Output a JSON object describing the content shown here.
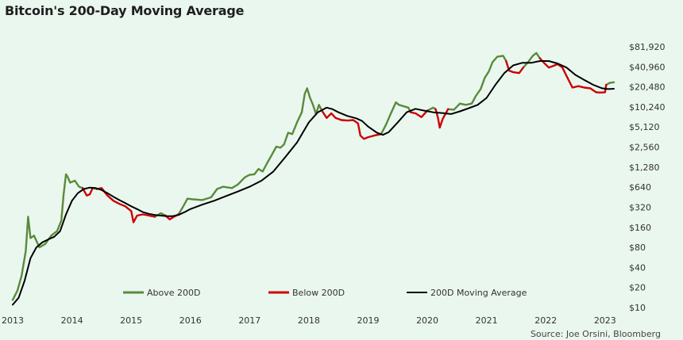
{
  "title": "Bitcoin's 200-Day Moving Average",
  "source": "Source: Joe Orsini, Bloomberg",
  "colors": {
    "above": "#5a8a3a",
    "below": "#cc0000",
    "ma": "#000000",
    "background": "#eaf7ef"
  },
  "chart_data": {
    "type": "line",
    "title": "Bitcoin's 200-Day Moving Average",
    "y_scale": "log2",
    "ylim": [
      10,
      100000
    ],
    "y_ticks": [
      10,
      20,
      40,
      80,
      160,
      320,
      640,
      1280,
      2560,
      5120,
      10240,
      20480,
      40960,
      81920
    ],
    "y_tick_labels": [
      "$10",
      "$20",
      "$40",
      "$80",
      "$160",
      "$320",
      "$640",
      "$1,280",
      "$2,560",
      "$5,120",
      "$10,240",
      "$20,480",
      "$40,960",
      "$81,920"
    ],
    "x_ticks": [
      2013,
      2014,
      2015,
      2016,
      2017,
      2018,
      2019,
      2020,
      2021,
      2022,
      2023
    ],
    "xlim": [
      2013.0,
      2023.15
    ],
    "legend_position": "bottom-center",
    "series": [
      {
        "name": "Above 200D",
        "color": "#5a8a3a",
        "segments": [
          [
            [
              2013.0,
              13
            ],
            [
              2013.08,
              18
            ],
            [
              2013.15,
              30
            ],
            [
              2013.22,
              70
            ],
            [
              2013.26,
              230
            ],
            [
              2013.3,
              110
            ],
            [
              2013.36,
              120
            ],
            [
              2013.45,
              80
            ],
            [
              2013.55,
              90
            ],
            [
              2013.65,
              120
            ],
            [
              2013.75,
              140
            ],
            [
              2013.82,
              200
            ],
            [
              2013.86,
              500
            ],
            [
              2013.9,
              1000
            ],
            [
              2013.93,
              900
            ],
            [
              2013.97,
              750
            ],
            [
              2014.05,
              800
            ],
            [
              2014.12,
              650
            ],
            [
              2014.18,
              620
            ]
          ],
          [
            [
              2014.35,
              620
            ],
            [
              2014.42,
              600
            ]
          ],
          [
            [
              2015.4,
              230
            ],
            [
              2015.5,
              260
            ],
            [
              2015.58,
              240
            ]
          ],
          [
            [
              2015.8,
              250
            ],
            [
              2015.88,
              330
            ],
            [
              2015.95,
              430
            ],
            [
              2016.05,
              420
            ],
            [
              2016.2,
              410
            ],
            [
              2016.35,
              450
            ],
            [
              2016.45,
              600
            ],
            [
              2016.55,
              650
            ],
            [
              2016.7,
              620
            ],
            [
              2016.8,
              700
            ],
            [
              2016.92,
              900
            ],
            [
              2017.0,
              980
            ],
            [
              2017.08,
              1000
            ],
            [
              2017.15,
              1200
            ],
            [
              2017.22,
              1100
            ],
            [
              2017.3,
              1500
            ],
            [
              2017.38,
              2000
            ],
            [
              2017.45,
              2600
            ],
            [
              2017.52,
              2500
            ],
            [
              2017.58,
              2800
            ],
            [
              2017.65,
              4200
            ],
            [
              2017.72,
              4000
            ],
            [
              2017.8,
              6000
            ],
            [
              2017.88,
              8500
            ],
            [
              2017.93,
              16000
            ],
            [
              2017.97,
              19500
            ],
            [
              2018.02,
              14000
            ],
            [
              2018.07,
              11000
            ],
            [
              2018.12,
              8000
            ],
            [
              2018.17,
              11000
            ],
            [
              2018.22,
              9000
            ]
          ],
          [
            [
              2019.22,
              4000
            ],
            [
              2019.3,
              5500
            ],
            [
              2019.38,
              8000
            ],
            [
              2019.47,
              12000
            ],
            [
              2019.52,
              11000
            ],
            [
              2019.6,
              10500
            ],
            [
              2019.68,
              10000
            ],
            [
              2019.72,
              8500
            ]
          ],
          [
            [
              2020.0,
              9000
            ],
            [
              2020.1,
              10000
            ],
            [
              2020.14,
              9500
            ]
          ],
          [
            [
              2020.35,
              9500
            ],
            [
              2020.45,
              9300
            ],
            [
              2020.55,
              11500
            ],
            [
              2020.65,
              11000
            ],
            [
              2020.75,
              11500
            ],
            [
              2020.82,
              15000
            ],
            [
              2020.9,
              19000
            ],
            [
              2020.97,
              28000
            ],
            [
              2021.04,
              35000
            ],
            [
              2021.1,
              48000
            ],
            [
              2021.18,
              58000
            ],
            [
              2021.28,
              60000
            ],
            [
              2021.33,
              50000
            ]
          ],
          [
            [
              2021.62,
              40000
            ],
            [
              2021.7,
              48000
            ],
            [
              2021.78,
              60000
            ],
            [
              2021.84,
              66000
            ],
            [
              2021.9,
              55000
            ]
          ],
          [
            [
              2023.02,
              22000
            ],
            [
              2023.08,
              23500
            ],
            [
              2023.15,
              24000
            ]
          ]
        ]
      },
      {
        "name": "Below 200D",
        "color": "#cc0000",
        "segments": [
          [
            [
              2014.18,
              620
            ],
            [
              2014.25,
              480
            ],
            [
              2014.3,
              500
            ],
            [
              2014.35,
              620
            ]
          ],
          [
            [
              2014.42,
              600
            ],
            [
              2014.5,
              620
            ],
            [
              2014.6,
              480
            ],
            [
              2014.7,
              400
            ],
            [
              2014.8,
              360
            ],
            [
              2014.9,
              330
            ],
            [
              2015.0,
              280
            ],
            [
              2015.04,
              190
            ],
            [
              2015.1,
              240
            ],
            [
              2015.2,
              250
            ],
            [
              2015.3,
              240
            ],
            [
              2015.4,
              230
            ]
          ],
          [
            [
              2015.58,
              240
            ],
            [
              2015.65,
              210
            ],
            [
              2015.72,
              230
            ],
            [
              2015.8,
              250
            ]
          ],
          [
            [
              2018.22,
              9000
            ],
            [
              2018.3,
              7000
            ],
            [
              2018.38,
              8200
            ],
            [
              2018.45,
              7000
            ],
            [
              2018.55,
              6500
            ],
            [
              2018.65,
              6400
            ],
            [
              2018.75,
              6500
            ],
            [
              2018.83,
              5800
            ],
            [
              2018.87,
              3800
            ],
            [
              2018.93,
              3400
            ],
            [
              2019.0,
              3600
            ],
            [
              2019.1,
              3800
            ],
            [
              2019.22,
              4000
            ]
          ],
          [
            [
              2019.72,
              8500
            ],
            [
              2019.8,
              8200
            ],
            [
              2019.9,
              7200
            ],
            [
              2020.0,
              9000
            ]
          ],
          [
            [
              2020.14,
              9500
            ],
            [
              2020.18,
              7000
            ],
            [
              2020.21,
              5000
            ],
            [
              2020.26,
              6800
            ],
            [
              2020.35,
              9500
            ]
          ],
          [
            [
              2021.33,
              50000
            ],
            [
              2021.38,
              36000
            ],
            [
              2021.45,
              34000
            ],
            [
              2021.55,
              33000
            ],
            [
              2021.62,
              40000
            ]
          ],
          [
            [
              2021.9,
              55000
            ],
            [
              2021.97,
              47000
            ],
            [
              2022.05,
              40000
            ],
            [
              2022.12,
              42000
            ],
            [
              2022.2,
              45000
            ],
            [
              2022.28,
              40000
            ],
            [
              2022.35,
              30000
            ],
            [
              2022.45,
              20000
            ],
            [
              2022.55,
              21000
            ],
            [
              2022.65,
              20000
            ],
            [
              2022.75,
              19500
            ],
            [
              2022.85,
              17000
            ],
            [
              2022.92,
              16800
            ],
            [
              2023.0,
              17000
            ],
            [
              2023.02,
              22000
            ]
          ]
        ]
      },
      {
        "name": "200D Moving Average",
        "color": "#000000",
        "segments": [
          [
            [
              2013.0,
              11
            ],
            [
              2013.1,
              14
            ],
            [
              2013.2,
              25
            ],
            [
              2013.3,
              55
            ],
            [
              2013.4,
              80
            ],
            [
              2013.5,
              95
            ],
            [
              2013.6,
              105
            ],
            [
              2013.7,
              115
            ],
            [
              2013.8,
              140
            ],
            [
              2013.9,
              250
            ],
            [
              2014.0,
              400
            ],
            [
              2014.1,
              520
            ],
            [
              2014.2,
              600
            ],
            [
              2014.3,
              630
            ],
            [
              2014.4,
              620
            ],
            [
              2014.5,
              580
            ],
            [
              2014.6,
              520
            ],
            [
              2014.7,
              460
            ],
            [
              2014.8,
              410
            ],
            [
              2014.9,
              370
            ],
            [
              2015.0,
              330
            ],
            [
              2015.1,
              300
            ],
            [
              2015.2,
              270
            ],
            [
              2015.3,
              255
            ],
            [
              2015.4,
              245
            ],
            [
              2015.5,
              240
            ],
            [
              2015.6,
              235
            ],
            [
              2015.7,
              235
            ],
            [
              2015.8,
              245
            ],
            [
              2015.9,
              270
            ],
            [
              2016.0,
              300
            ],
            [
              2016.2,
              350
            ],
            [
              2016.4,
              400
            ],
            [
              2016.6,
              470
            ],
            [
              2016.8,
              550
            ],
            [
              2017.0,
              650
            ],
            [
              2017.2,
              800
            ],
            [
              2017.4,
              1100
            ],
            [
              2017.6,
              1800
            ],
            [
              2017.8,
              3000
            ],
            [
              2018.0,
              6000
            ],
            [
              2018.15,
              8500
            ],
            [
              2018.3,
              10000
            ],
            [
              2018.4,
              9500
            ],
            [
              2018.5,
              8500
            ],
            [
              2018.65,
              7500
            ],
            [
              2018.8,
              6900
            ],
            [
              2018.9,
              6300
            ],
            [
              2019.0,
              5200
            ],
            [
              2019.15,
              4200
            ],
            [
              2019.25,
              3900
            ],
            [
              2019.35,
              4300
            ],
            [
              2019.5,
              6000
            ],
            [
              2019.65,
              8500
            ],
            [
              2019.8,
              9600
            ],
            [
              2019.95,
              9000
            ],
            [
              2020.1,
              8500
            ],
            [
              2020.25,
              8300
            ],
            [
              2020.4,
              8000
            ],
            [
              2020.55,
              8800
            ],
            [
              2020.7,
              9800
            ],
            [
              2020.85,
              11000
            ],
            [
              2021.0,
              14000
            ],
            [
              2021.15,
              22000
            ],
            [
              2021.3,
              33000
            ],
            [
              2021.45,
              43000
            ],
            [
              2021.6,
              47000
            ],
            [
              2021.75,
              47000
            ],
            [
              2021.9,
              50000
            ],
            [
              2022.05,
              50000
            ],
            [
              2022.2,
              46000
            ],
            [
              2022.35,
              40000
            ],
            [
              2022.5,
              31000
            ],
            [
              2022.65,
              26000
            ],
            [
              2022.8,
              22000
            ],
            [
              2022.95,
              19500
            ],
            [
              2023.05,
              19000
            ],
            [
              2023.15,
              19200
            ]
          ]
        ]
      }
    ]
  }
}
